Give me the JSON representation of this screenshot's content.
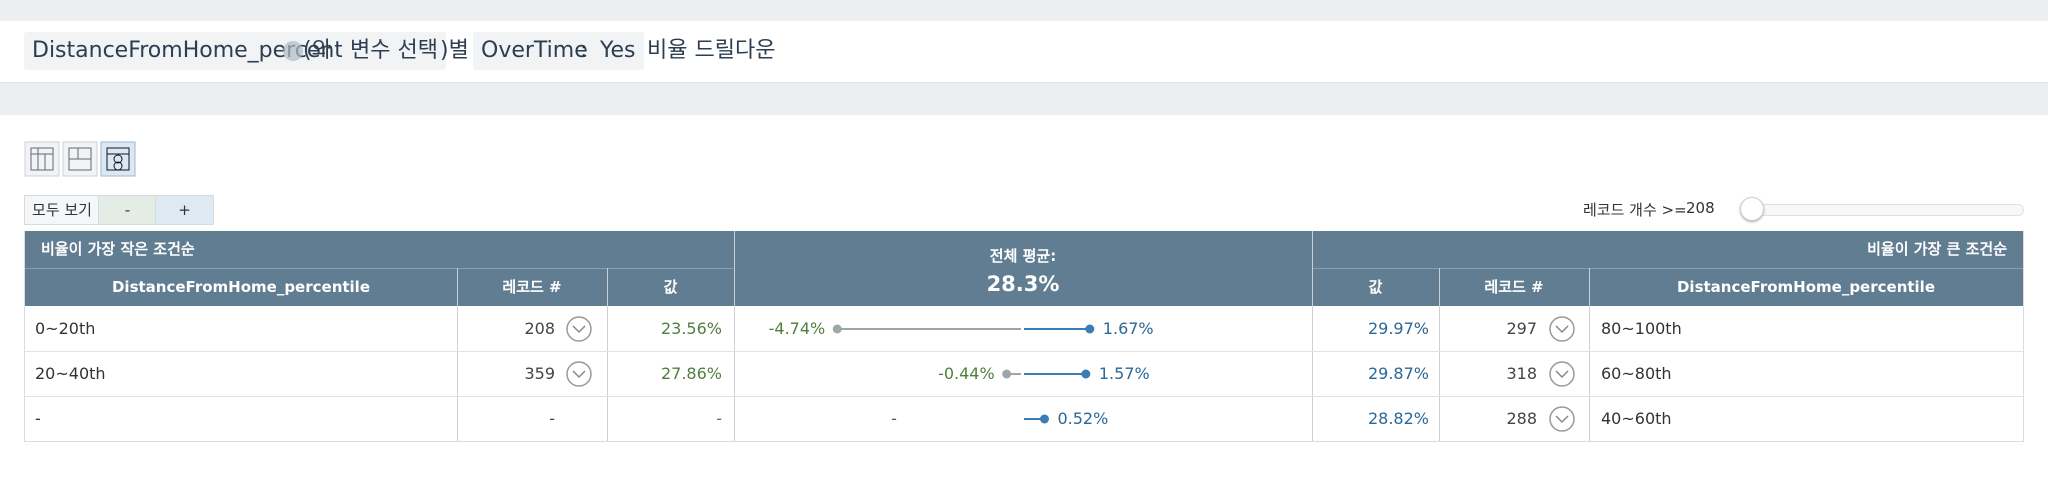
{
  "header": {
    "variable": "DistanceFromHome_percentile",
    "connector": "(와",
    "select_button": "변수 선택",
    "suffix": ")별",
    "filter_name": "OverTime",
    "filter_sep": ":",
    "filter_value": "Yes",
    "action": "비율 드릴다운"
  },
  "controls": {
    "show_all": "모두 보기",
    "minus": "-",
    "plus": "+",
    "record_count_label": "레코드 개수 >=",
    "record_count_min": 208
  },
  "table": {
    "left_title": "비율이 가장 작은 조건순",
    "right_title": "비율이 가장 큰 조건순",
    "avg_title": "전체 평균:",
    "avg_value": "28.3%",
    "columns": {
      "left": [
        "DistanceFromHome_percentile",
        "레코드 #",
        "값"
      ],
      "right": [
        "값",
        "레코드 #",
        "DistanceFromHome_percentile"
      ]
    },
    "rows": [
      {
        "left_condition": "0~20th",
        "left_records": 208,
        "left_value": "23.56%",
        "left_diff": {
          "value": -4.74,
          "label": "-4.74%"
        },
        "right_diff": {
          "value": 1.67,
          "label": "1.67%"
        },
        "right_value": "29.97%",
        "right_records": 297,
        "right_condition": "80~100th"
      },
      {
        "left_condition": "20~40th",
        "left_records": 359,
        "left_value": "27.86%",
        "left_diff": {
          "value": -0.44,
          "label": "-0.44%"
        },
        "right_diff": {
          "value": 1.57,
          "label": "1.57%"
        },
        "right_value": "29.87%",
        "right_records": 318,
        "right_condition": "60~80th"
      },
      {
        "left_condition": "-",
        "left_records": "-",
        "left_value": "-",
        "left_diff": {
          "value": null,
          "label": "-"
        },
        "right_diff": {
          "value": 0.52,
          "label": "0.52%"
        },
        "right_value": "28.82%",
        "right_records": 288,
        "right_condition": "40~60th"
      }
    ]
  }
}
